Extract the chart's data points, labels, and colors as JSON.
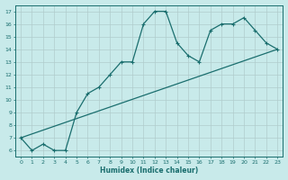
{
  "xlabel": "Humidex (Indice chaleur)",
  "bg_color": "#c8eaea",
  "grid_color": "#b0cccc",
  "line_color": "#1a6e6e",
  "xlim": [
    -0.5,
    23.5
  ],
  "ylim": [
    5.5,
    17.5
  ],
  "xticks": [
    0,
    1,
    2,
    3,
    4,
    5,
    6,
    7,
    8,
    9,
    10,
    11,
    12,
    13,
    14,
    15,
    16,
    17,
    18,
    19,
    20,
    21,
    22,
    23
  ],
  "yticks": [
    6,
    7,
    8,
    9,
    10,
    11,
    12,
    13,
    14,
    15,
    16,
    17
  ],
  "line1_x": [
    0,
    1,
    2,
    3,
    4,
    5,
    6,
    7,
    8,
    9,
    10,
    11,
    12,
    13,
    14,
    15,
    16,
    17,
    18,
    19,
    20,
    21,
    22,
    23
  ],
  "line1_y": [
    7,
    6,
    6.5,
    6,
    6,
    9,
    10.5,
    11,
    12,
    13,
    13,
    16,
    17,
    17,
    14.5,
    13.5,
    13,
    15.5,
    16,
    16,
    16.5,
    15.5,
    14.5,
    14
  ],
  "line2_x": [
    0,
    23
  ],
  "line2_y": [
    7,
    14
  ]
}
